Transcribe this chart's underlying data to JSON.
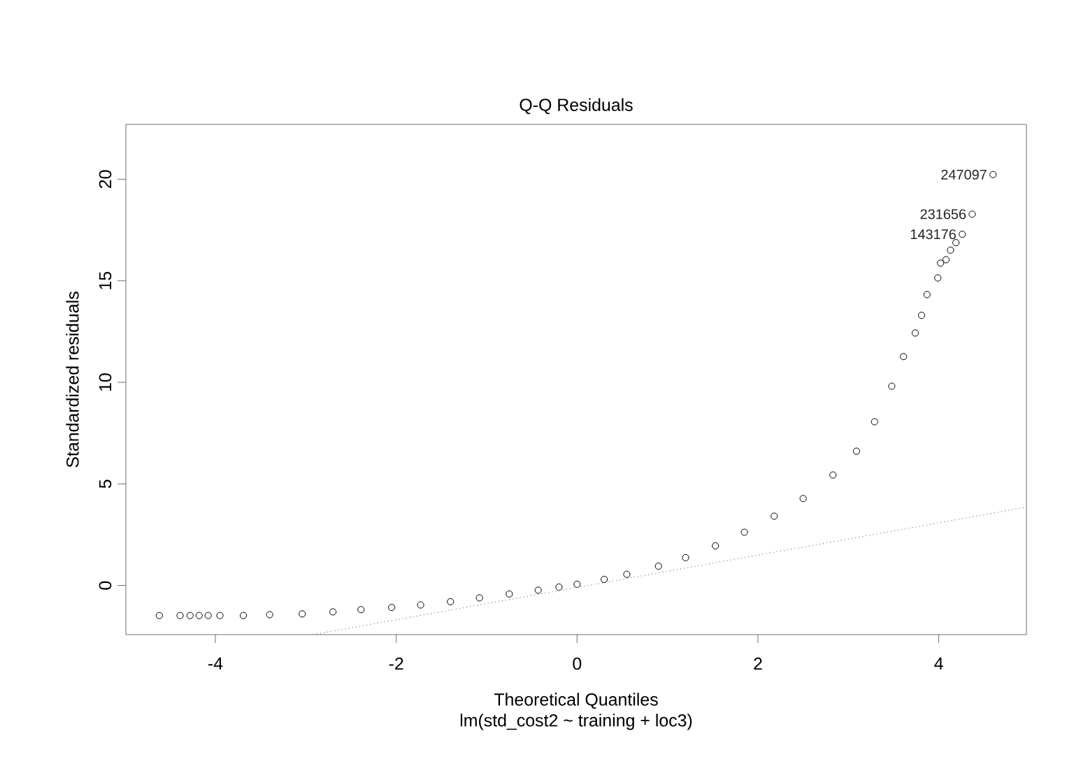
{
  "chart_data": {
    "type": "scatter",
    "title": "Q-Q Residuals",
    "subtitle": "lm(std_cost2 ~ training + loc3)",
    "xlabel": "Theoretical Quantiles",
    "ylabel": "Standardized residuals",
    "xlim": [
      -4.99,
      4.97
    ],
    "ylim": [
      -2.42,
      22.7
    ],
    "xticks": [
      -4,
      -2,
      0,
      2,
      4
    ],
    "yticks": [
      0,
      5,
      10,
      15,
      20
    ],
    "grid": false,
    "marker": "circle",
    "series": [
      {
        "color": "#000000",
        "x": [
          -4.62,
          -4.39,
          -4.28,
          -4.18,
          -4.08,
          -3.95,
          -3.69,
          -3.4,
          -3.04,
          -2.7,
          -2.39,
          -2.05,
          -1.73,
          -1.4,
          -1.08,
          -0.75,
          -0.43,
          -0.2,
          0,
          0.3,
          0.55,
          0.9,
          1.2,
          1.53,
          1.85,
          2.18,
          2.5,
          2.83,
          3.09,
          3.29,
          3.48,
          3.61,
          3.74,
          3.81,
          3.87,
          3.99,
          4.02,
          4.08,
          4.13,
          4.19,
          4.26,
          4.37,
          4.6
        ],
        "values": [
          -1.48,
          -1.48,
          -1.48,
          -1.48,
          -1.48,
          -1.48,
          -1.48,
          -1.44,
          -1.4,
          -1.3,
          -1.19,
          -1.08,
          -0.96,
          -0.8,
          -0.61,
          -0.42,
          -0.23,
          -0.08,
          0.06,
          0.3,
          0.55,
          0.95,
          1.37,
          1.95,
          2.62,
          3.41,
          4.28,
          5.44,
          6.61,
          8.06,
          9.81,
          11.27,
          12.43,
          13.3,
          14.32,
          15.14,
          15.87,
          16.04,
          16.51,
          16.88,
          17.29,
          18.28,
          20.23
        ]
      },
      {
        "type": "line",
        "color": "#808080",
        "line_style": "dotted",
        "marker": "none",
        "x": [
          -2.92,
          4.95
        ],
        "values": [
          -2.42,
          3.84
        ]
      }
    ],
    "annotations": [
      {
        "text": "247097",
        "x": 4.6,
        "y": 20.23
      },
      {
        "text": "231656",
        "x": 4.37,
        "y": 18.28
      },
      {
        "text": "143176",
        "x": 4.26,
        "y": 17.29
      }
    ]
  }
}
